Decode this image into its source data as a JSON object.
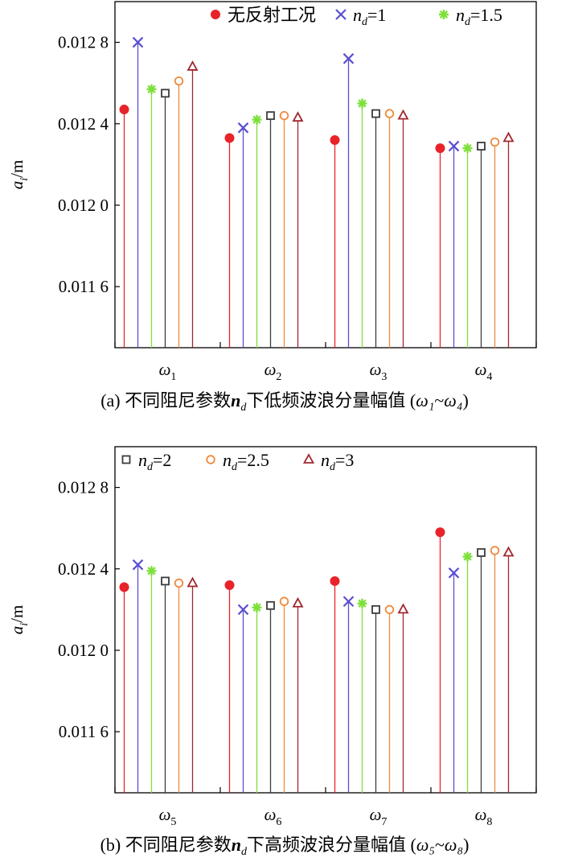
{
  "chart_data": [
    {
      "type": "stem",
      "panel": "a",
      "caption": {
        "prefix": "(a) 不同阻尼参数",
        "mid": "下低频波浪分量幅值 (",
        "range_a": "ω₁",
        "tilde": "~",
        "range_b": "ω₄",
        "suffix": ")"
      },
      "ylabel": {
        "sym": "a",
        "sub": "i",
        "unit": "/m"
      },
      "yticks": [
        {
          "value": 0.0116,
          "label": "0.011 6"
        },
        {
          "value": 0.012,
          "label": "0.012 0"
        },
        {
          "value": 0.0124,
          "label": "0.012 4"
        },
        {
          "value": 0.0128,
          "label": "0.012 8"
        }
      ],
      "ylim": [
        0.0113,
        0.013
      ],
      "categories": [
        {
          "sym": "ω",
          "sub": "1"
        },
        {
          "sym": "ω",
          "sub": "2"
        },
        {
          "sym": "ω",
          "sub": "3"
        },
        {
          "sym": "ω",
          "sub": "4"
        }
      ],
      "legend_position": "top",
      "legend_series": [
        0,
        1,
        2
      ],
      "series": [
        {
          "name": "无反射工况",
          "marker": "circle",
          "color": "#e8232a",
          "values": [
            0.01247,
            0.01233,
            0.01232,
            0.01228
          ]
        },
        {
          "name": "nd=1",
          "nd": "1",
          "marker": "x",
          "color": "#5a4fcf",
          "values": [
            0.0128,
            0.01238,
            0.01272,
            0.01229
          ]
        },
        {
          "name": "nd=1.5",
          "nd": "1.5",
          "marker": "asterisk",
          "color": "#7ee03a",
          "values": [
            0.01257,
            0.01242,
            0.0125,
            0.01228
          ]
        },
        {
          "name": "nd=2",
          "nd": "2",
          "marker": "square",
          "color": "#3b3b3b",
          "values": [
            0.01255,
            0.01244,
            0.01245,
            0.01229
          ]
        },
        {
          "name": "nd=2.5",
          "nd": "2.5",
          "marker": "circle-open",
          "color": "#ee8a3c",
          "values": [
            0.01261,
            0.01244,
            0.01245,
            0.01231
          ]
        },
        {
          "name": "nd=3",
          "nd": "3",
          "marker": "triangle",
          "color": "#a1272d",
          "values": [
            0.01268,
            0.01243,
            0.01244,
            0.01233
          ]
        }
      ]
    },
    {
      "type": "stem",
      "panel": "b",
      "caption": {
        "prefix": "(b) 不同阻尼参数",
        "mid": "下高频波浪分量幅值 (",
        "range_a": "ω₅",
        "tilde": "~",
        "range_b": "ω₈",
        "suffix": ")"
      },
      "ylabel": {
        "sym": "a",
        "sub": "i",
        "unit": "/m"
      },
      "yticks": [
        {
          "value": 0.0116,
          "label": "0.011 6"
        },
        {
          "value": 0.012,
          "label": "0.012 0"
        },
        {
          "value": 0.0124,
          "label": "0.012 4"
        },
        {
          "value": 0.0128,
          "label": "0.012 8"
        }
      ],
      "ylim": [
        0.0113,
        0.013
      ],
      "categories": [
        {
          "sym": "ω",
          "sub": "5"
        },
        {
          "sym": "ω",
          "sub": "6"
        },
        {
          "sym": "ω",
          "sub": "7"
        },
        {
          "sym": "ω",
          "sub": "8"
        }
      ],
      "legend_position": "top",
      "legend_series": [
        3,
        4,
        5
      ],
      "series": [
        {
          "name": "无反射工况",
          "marker": "circle",
          "color": "#e8232a",
          "values": [
            0.01231,
            0.01232,
            0.01234,
            0.01258
          ]
        },
        {
          "name": "nd=1",
          "nd": "1",
          "marker": "x",
          "color": "#5a4fcf",
          "values": [
            0.01242,
            0.0122,
            0.01224,
            0.01238
          ]
        },
        {
          "name": "nd=1.5",
          "nd": "1.5",
          "marker": "asterisk",
          "color": "#7ee03a",
          "values": [
            0.01239,
            0.01221,
            0.01223,
            0.01246
          ]
        },
        {
          "name": "nd=2",
          "nd": "2",
          "marker": "square",
          "color": "#3b3b3b",
          "values": [
            0.01234,
            0.01222,
            0.0122,
            0.01248
          ]
        },
        {
          "name": "nd=2.5",
          "nd": "2.5",
          "marker": "circle-open",
          "color": "#ee8a3c",
          "values": [
            0.01233,
            0.01224,
            0.0122,
            0.01249
          ]
        },
        {
          "name": "nd=3",
          "nd": "3",
          "marker": "triangle",
          "color": "#a1272d",
          "values": [
            0.01233,
            0.01223,
            0.0122,
            0.01248
          ]
        }
      ]
    }
  ]
}
